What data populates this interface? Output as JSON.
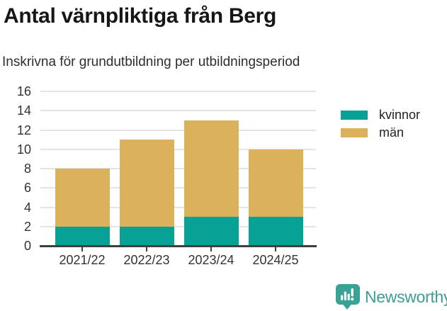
{
  "header": {
    "title": "Antal värnpliktiga från Berg",
    "subtitle": "Inskrivna för grundutbildning per utbildningsperiod"
  },
  "chart_data": {
    "type": "bar",
    "stacked": true,
    "title": "Antal värnpliktiga från Berg",
    "subtitle": "Inskrivna för grundutbildning per utbildningsperiod",
    "categories": [
      "2021/22",
      "2022/23",
      "2023/24",
      "2024/25"
    ],
    "series": [
      {
        "name": "kvinnor",
        "color": "#07a295",
        "values": [
          2,
          2,
          3,
          3
        ]
      },
      {
        "name": "män",
        "color": "#dbb15c",
        "values": [
          6,
          9,
          10,
          7
        ]
      }
    ],
    "stack_totals": [
      8,
      11,
      13,
      10
    ],
    "xlabel": "",
    "ylabel": "",
    "ylim": [
      0,
      16
    ],
    "yticks": [
      0,
      2,
      4,
      6,
      8,
      10,
      12,
      14,
      16
    ],
    "grid": true,
    "legend_position": "top-right"
  },
  "colors": {
    "grid": "#e4e4e4",
    "axis": "#3f3f3f",
    "axis_text": "#333333",
    "title_text": "#161616",
    "brand_teal": "#38a294",
    "brand_text": "#3e9d90"
  },
  "footer": {
    "brand": "Newsworthy"
  }
}
